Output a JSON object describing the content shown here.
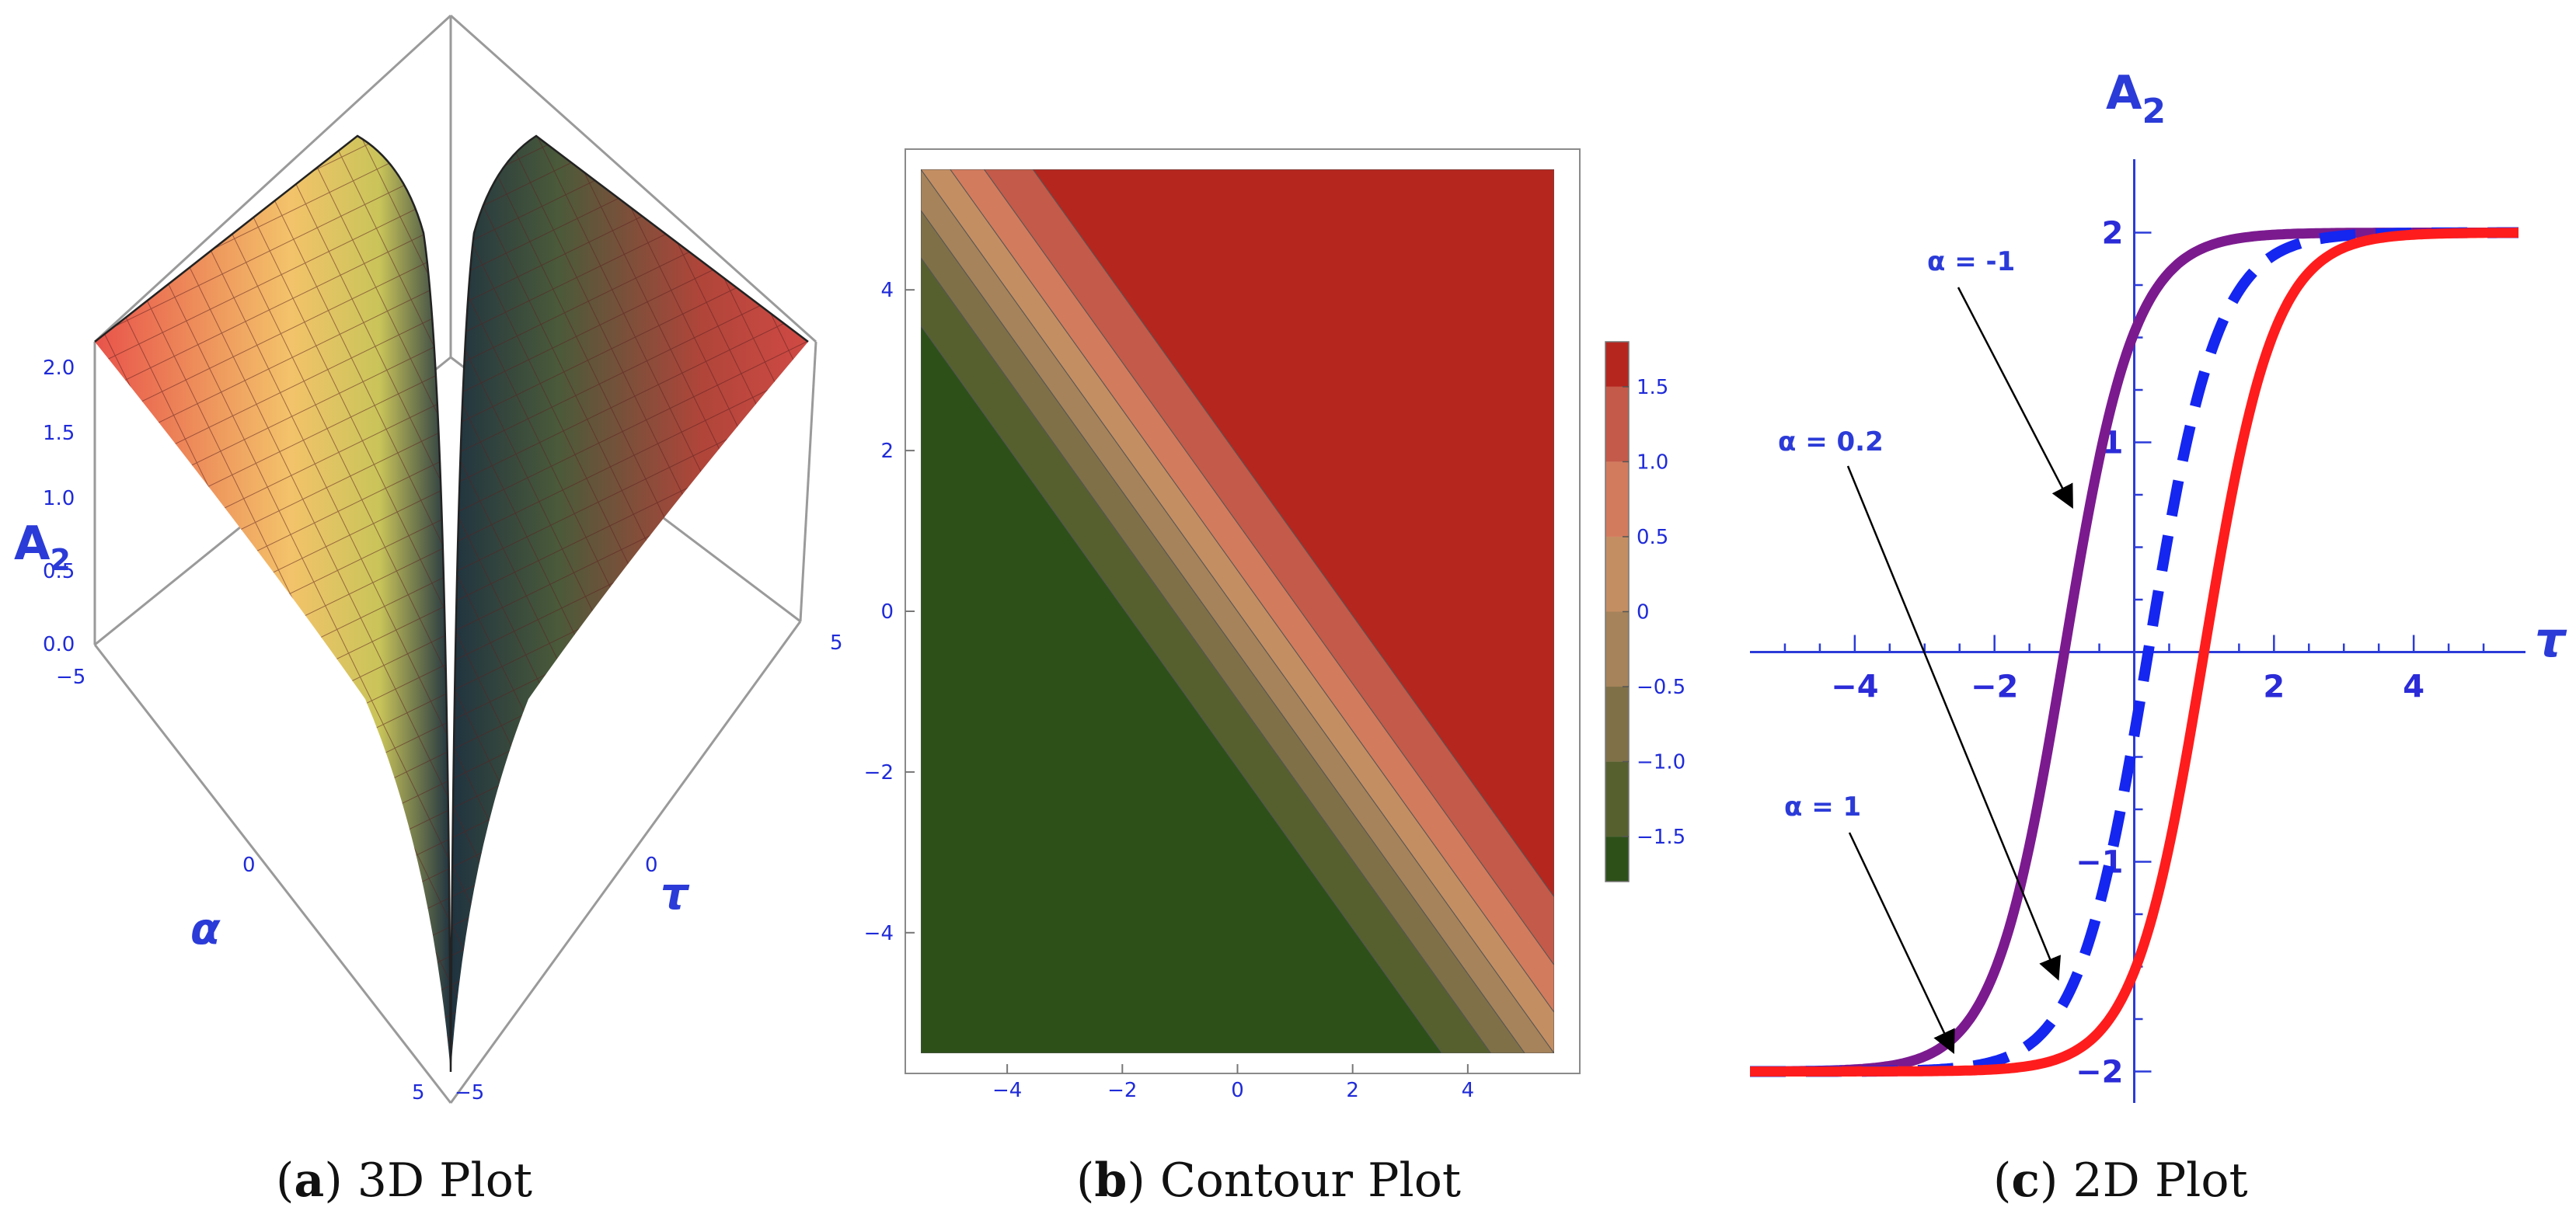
{
  "captions": [
    {
      "label": "a",
      "text": " 3D Plot"
    },
    {
      "label": "b",
      "text": " Contour Plot"
    },
    {
      "label": "c",
      "text": " 2D Plot"
    }
  ],
  "chart_data": [
    {
      "type": "surface3d",
      "zlabel_main": "A",
      "zlabel_sub": "2",
      "xlabel": "α",
      "ylabel": "τ",
      "z_ticks": [
        "0.0",
        "0.5",
        "1.0",
        "1.5",
        "2.0"
      ],
      "alpha_ticks": [
        "−5",
        "0",
        "5"
      ],
      "tau_ticks": [
        "−5",
        "0",
        "5"
      ],
      "alpha_range": [
        -5,
        5
      ],
      "tau_range": [
        -5,
        5
      ],
      "zlim": [
        0,
        2
      ],
      "colors": {
        "surface": "#e8534a",
        "ridge_mid": "#f2d25a",
        "ridge_dark": "#2a3a4a"
      }
    },
    {
      "type": "heatmap",
      "x_range": [
        -5.5,
        5.5
      ],
      "y_range": [
        -5.5,
        5.5
      ],
      "x_ticks": [
        "−4",
        "−2",
        "0",
        "2",
        "4"
      ],
      "x_tick_values": [
        -4,
        -2,
        0,
        2,
        4
      ],
      "y_ticks": [
        "−4",
        "−2",
        "0",
        "2",
        "4"
      ],
      "y_tick_values": [
        -4,
        -2,
        0,
        2,
        4
      ],
      "levels": [
        -1.8,
        -1.5,
        -1.0,
        -0.5,
        0,
        0.5,
        1.0,
        1.5,
        1.8
      ],
      "level_colors": [
        "#2d5019",
        "#56602f",
        "#7f7048",
        "#a6835a",
        "#c48e63",
        "#d37b5d",
        "#c45a49",
        "#b5261f"
      ],
      "colorbar_ticks": [
        "1.5",
        "1.0",
        "0.5",
        "0",
        "−0.5",
        "−1.0",
        "−1.5"
      ],
      "colorbar_tick_values": [
        1.5,
        1.0,
        0.5,
        0,
        -0.5,
        -1.0,
        -1.5
      ]
    },
    {
      "type": "line",
      "ylabel_main": "A",
      "ylabel_sub": "2",
      "xlabel": "τ",
      "x_range": [
        -5.5,
        5.6
      ],
      "y_range": [
        -2.15,
        2.35
      ],
      "x_ticks": [
        "−4",
        "−2",
        "2",
        "4"
      ],
      "x_tick_values": [
        -4,
        -2,
        2,
        4
      ],
      "y_ticks": [
        "2",
        "1",
        "−1",
        "−2"
      ],
      "y_tick_values": [
        2,
        1,
        -1,
        -2
      ],
      "series": [
        {
          "alpha": -1,
          "color": "#7b1a8f",
          "dash": "solid",
          "shift": 1
        },
        {
          "alpha": 0.2,
          "color": "#1426f0",
          "dash": "dashed",
          "shift": -0.2
        },
        {
          "alpha": 1,
          "color": "#ff1c1c",
          "dash": "solid",
          "shift": -1
        }
      ],
      "annotations": [
        {
          "text": "α = -1",
          "target": [
            -0.9,
            0.7
          ]
        },
        {
          "text": "α = 0.2",
          "target": [
            -1.1,
            -1.55
          ]
        },
        {
          "text": "α = 1",
          "target": [
            -2.6,
            -1.9
          ]
        }
      ]
    }
  ]
}
